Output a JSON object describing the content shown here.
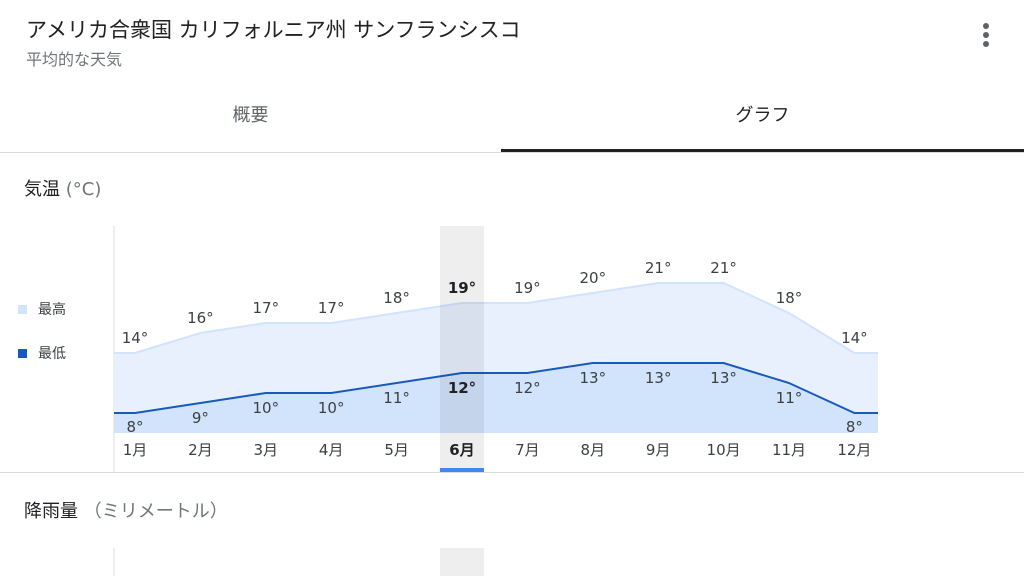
{
  "header": {
    "title": "アメリカ合衆国 カリフォルニア州 サンフランシスコ",
    "subtitle": "平均的な天気",
    "menu_icon": "more-vert-icon"
  },
  "tabs": [
    {
      "label": "概要",
      "active": false
    },
    {
      "label": "グラフ",
      "active": true
    }
  ],
  "temperature_section": {
    "title": "気温",
    "unit": "(°C)",
    "legend": [
      {
        "label": "最高",
        "color": "#d2e3fc"
      },
      {
        "label": "最低",
        "color": "#185abc"
      }
    ],
    "selected_month": "6月"
  },
  "precipitation_section": {
    "title": "降雨量",
    "unit": "（ミリメートル）"
  },
  "chart_data": {
    "type": "area",
    "categories": [
      "1月",
      "2月",
      "3月",
      "4月",
      "5月",
      "6月",
      "7月",
      "8月",
      "9月",
      "10月",
      "11月",
      "12月"
    ],
    "series": [
      {
        "name": "最高",
        "values": [
          14,
          16,
          17,
          17,
          18,
          19,
          19,
          20,
          21,
          21,
          18,
          14
        ],
        "color": "#e8f0fe"
      },
      {
        "name": "最低",
        "values": [
          8,
          9,
          10,
          10,
          11,
          12,
          12,
          13,
          13,
          13,
          11,
          8
        ],
        "color": "#185abc"
      }
    ],
    "value_suffix": "°",
    "selected_index": 5,
    "accent_color": "#4285f4"
  }
}
